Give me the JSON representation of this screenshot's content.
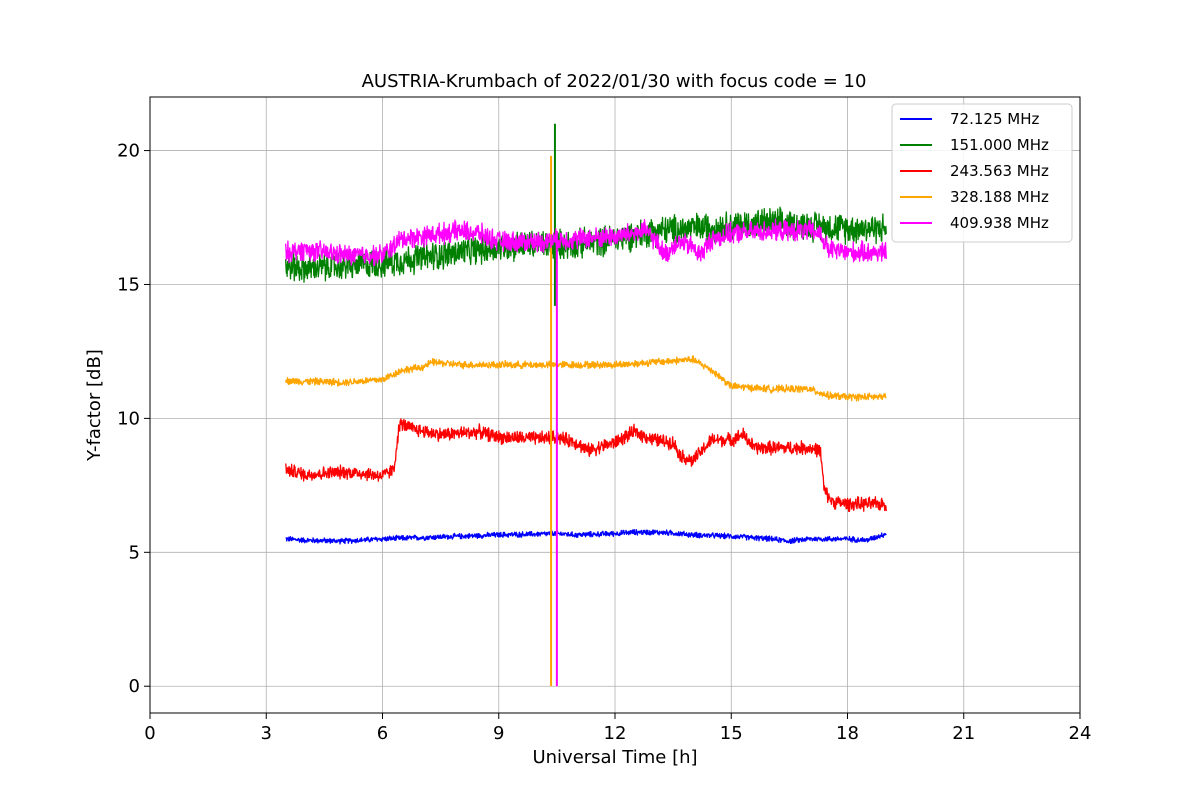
{
  "chart_data": {
    "type": "line",
    "title": "AUSTRIA-Krumbach of 2022/01/30 with focus code = 10",
    "xlabel": "Universal Time [h]",
    "ylabel": "Y-factor [dB]",
    "xlim": [
      0,
      24
    ],
    "ylim": [
      -1,
      22
    ],
    "xticks": [
      0,
      3,
      6,
      9,
      12,
      15,
      18,
      21,
      24
    ],
    "yticks": [
      0,
      5,
      10,
      15,
      20
    ],
    "grid": true,
    "legend_position": "top-right",
    "series": [
      {
        "name": " 72.125 MHz",
        "color": "#0000ff",
        "noise": 0.12,
        "points": [
          [
            3.5,
            5.5
          ],
          [
            4.0,
            5.45
          ],
          [
            5.0,
            5.42
          ],
          [
            6.0,
            5.5
          ],
          [
            7.0,
            5.55
          ],
          [
            8.0,
            5.6
          ],
          [
            9.0,
            5.65
          ],
          [
            10.0,
            5.68
          ],
          [
            10.5,
            5.7
          ],
          [
            11.0,
            5.65
          ],
          [
            12.0,
            5.7
          ],
          [
            12.5,
            5.75
          ],
          [
            13.0,
            5.75
          ],
          [
            13.5,
            5.72
          ],
          [
            14.0,
            5.65
          ],
          [
            15.0,
            5.6
          ],
          [
            16.0,
            5.5
          ],
          [
            16.5,
            5.42
          ],
          [
            17.0,
            5.5
          ],
          [
            18.0,
            5.5
          ],
          [
            18.5,
            5.45
          ],
          [
            18.8,
            5.6
          ],
          [
            19.0,
            5.7
          ]
        ]
      },
      {
        "name": "151.000 MHz",
        "color": "#008000",
        "noise": 0.65,
        "spike": {
          "x": 10.45,
          "min": 14.2,
          "max": 21.0
        },
        "points": [
          [
            3.5,
            15.7
          ],
          [
            4.0,
            15.6
          ],
          [
            5.0,
            15.7
          ],
          [
            6.0,
            15.8
          ],
          [
            7.0,
            16.0
          ],
          [
            8.0,
            16.2
          ],
          [
            9.0,
            16.4
          ],
          [
            10.0,
            16.5
          ],
          [
            11.0,
            16.5
          ],
          [
            12.0,
            16.7
          ],
          [
            13.0,
            17.0
          ],
          [
            14.0,
            17.1
          ],
          [
            15.0,
            17.2
          ],
          [
            16.0,
            17.3
          ],
          [
            17.0,
            17.2
          ],
          [
            18.0,
            17.1
          ],
          [
            19.0,
            17.1
          ]
        ]
      },
      {
        "name": "243.563 MHz",
        "color": "#ff0000",
        "noise": 0.3,
        "points": [
          [
            3.5,
            8.1
          ],
          [
            4.0,
            7.9
          ],
          [
            5.0,
            8.0
          ],
          [
            5.5,
            7.95
          ],
          [
            6.0,
            7.85
          ],
          [
            6.3,
            8.1
          ],
          [
            6.38,
            9.2
          ],
          [
            6.45,
            9.8
          ],
          [
            6.8,
            9.6
          ],
          [
            7.5,
            9.4
          ],
          [
            8.5,
            9.5
          ],
          [
            9.0,
            9.3
          ],
          [
            10.0,
            9.25
          ],
          [
            10.5,
            9.3
          ],
          [
            11.0,
            9.1
          ],
          [
            11.3,
            8.8
          ],
          [
            12.0,
            9.1
          ],
          [
            12.5,
            9.5
          ],
          [
            13.0,
            9.2
          ],
          [
            13.5,
            9.1
          ],
          [
            13.7,
            8.6
          ],
          [
            14.0,
            8.4
          ],
          [
            14.5,
            9.2
          ],
          [
            15.0,
            9.2
          ],
          [
            15.3,
            9.4
          ],
          [
            15.6,
            8.9
          ],
          [
            16.0,
            8.9
          ],
          [
            17.0,
            8.9
          ],
          [
            17.3,
            8.8
          ],
          [
            17.4,
            7.3
          ],
          [
            17.6,
            6.9
          ],
          [
            18.0,
            6.8
          ],
          [
            19.0,
            6.8
          ]
        ]
      },
      {
        "name": "328.188 MHz",
        "color": "#ffa500",
        "noise": 0.16,
        "spike": {
          "x": 10.35,
          "min": 0.0,
          "max": 19.8
        },
        "points": [
          [
            3.5,
            11.4
          ],
          [
            5.0,
            11.35
          ],
          [
            6.0,
            11.45
          ],
          [
            6.5,
            11.8
          ],
          [
            7.0,
            11.9
          ],
          [
            7.3,
            12.1
          ],
          [
            8.0,
            12.0
          ],
          [
            9.0,
            12.0
          ],
          [
            10.0,
            12.0
          ],
          [
            11.0,
            12.0
          ],
          [
            12.0,
            12.0
          ],
          [
            13.0,
            12.1
          ],
          [
            14.0,
            12.2
          ],
          [
            14.5,
            11.8
          ],
          [
            15.0,
            11.2
          ],
          [
            16.0,
            11.1
          ],
          [
            17.0,
            11.1
          ],
          [
            17.5,
            10.85
          ],
          [
            18.0,
            10.8
          ],
          [
            19.0,
            10.8
          ]
        ]
      },
      {
        "name": "409.938 MHz",
        "color": "#ff00ff",
        "noise": 0.45,
        "spike": {
          "x": 10.5,
          "min": 0.0,
          "max": 17.0
        },
        "points": [
          [
            3.5,
            16.2
          ],
          [
            4.0,
            16.3
          ],
          [
            5.0,
            16.1
          ],
          [
            6.0,
            16.1
          ],
          [
            6.5,
            16.7
          ],
          [
            7.0,
            16.8
          ],
          [
            8.0,
            17.0
          ],
          [
            8.5,
            16.9
          ],
          [
            9.0,
            16.6
          ],
          [
            10.0,
            16.6
          ],
          [
            11.0,
            16.7
          ],
          [
            12.0,
            16.8
          ],
          [
            12.8,
            17.0
          ],
          [
            13.0,
            16.7
          ],
          [
            13.3,
            16.1
          ],
          [
            13.6,
            16.6
          ],
          [
            14.0,
            16.4
          ],
          [
            14.2,
            16.1
          ],
          [
            14.5,
            16.7
          ],
          [
            15.0,
            16.9
          ],
          [
            16.0,
            17.0
          ],
          [
            17.0,
            17.0
          ],
          [
            17.3,
            16.9
          ],
          [
            17.5,
            16.3
          ],
          [
            18.0,
            16.2
          ],
          [
            19.0,
            16.2
          ]
        ]
      }
    ]
  }
}
